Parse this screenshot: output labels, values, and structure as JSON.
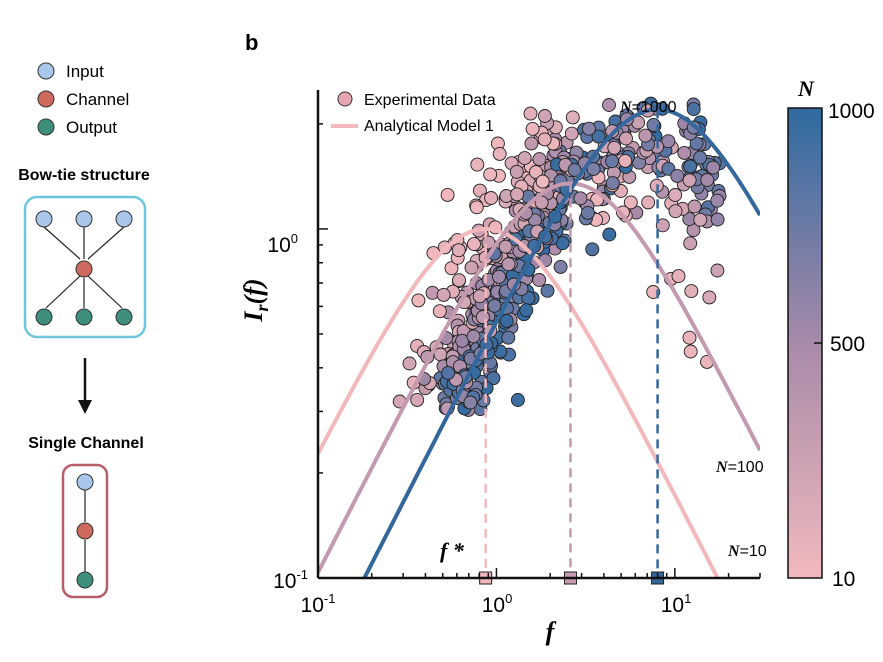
{
  "panel_a": {
    "legend": [
      {
        "label": "Input",
        "color": "#a9c7ea"
      },
      {
        "label": "Channel",
        "color": "#cd6a5d"
      },
      {
        "label": "Output",
        "color": "#3d8f7c"
      }
    ],
    "bowtie_title": "Bow-tie structure",
    "single_title": "Single Channel",
    "bowtie_border": "#6cc6dc",
    "single_border": "#b65f6a"
  },
  "panel_b": {
    "label": "b",
    "legend_experimental": "Experimental Data",
    "legend_model": "Analytical Model 1",
    "fstar_label": "f *",
    "ylabel": "I",
    "ylabel_sub": "r",
    "ylabel_arg": "(f)",
    "xlabel": "f",
    "colorbar": {
      "title": "N",
      "ticks": [
        "1000",
        "500",
        "10"
      ],
      "low_color": "#f1b9bd",
      "mid_color": "#a78aa9",
      "high_color": "#2f6aa0"
    }
  },
  "chart_data": {
    "type": "scatter",
    "xscale": "log",
    "yscale": "log",
    "xlim": [
      0.1,
      30
    ],
    "ylim": [
      0.1,
      2.5
    ],
    "xticks": [
      {
        "base": "10",
        "exp": "-1"
      },
      {
        "base": "10",
        "exp": "0"
      },
      {
        "base": "10",
        "exp": "1"
      }
    ],
    "yticks": [
      {
        "base": "10",
        "exp": "-1"
      },
      {
        "base": "10",
        "exp": "0"
      }
    ],
    "series": [
      {
        "name": "N=10",
        "N": 10,
        "fpeak": 0.87,
        "peak": 1.0,
        "color": "#f2b8bc",
        "label": "N",
        "label_value": "=10"
      },
      {
        "name": "N=100",
        "N": 100,
        "fpeak": 2.6,
        "peak": 1.35,
        "color": "#c59aae",
        "label": "N",
        "label_value": "=100"
      },
      {
        "name": "N=1000",
        "N": 1000,
        "fpeak": 8.0,
        "peak": 2.2,
        "color": "#34679b",
        "label": "N",
        "label_value": "=1000"
      }
    ],
    "model": "I(f) = peak * 2 (f/fpeak) / (1 + (f/fpeak)^2)",
    "fstar_markers": [
      0.87,
      2.6,
      8.0
    ],
    "scatter_points_note": "~700 experimental points; f between 0.2 and 20, colored by N (10 to 1000)"
  }
}
